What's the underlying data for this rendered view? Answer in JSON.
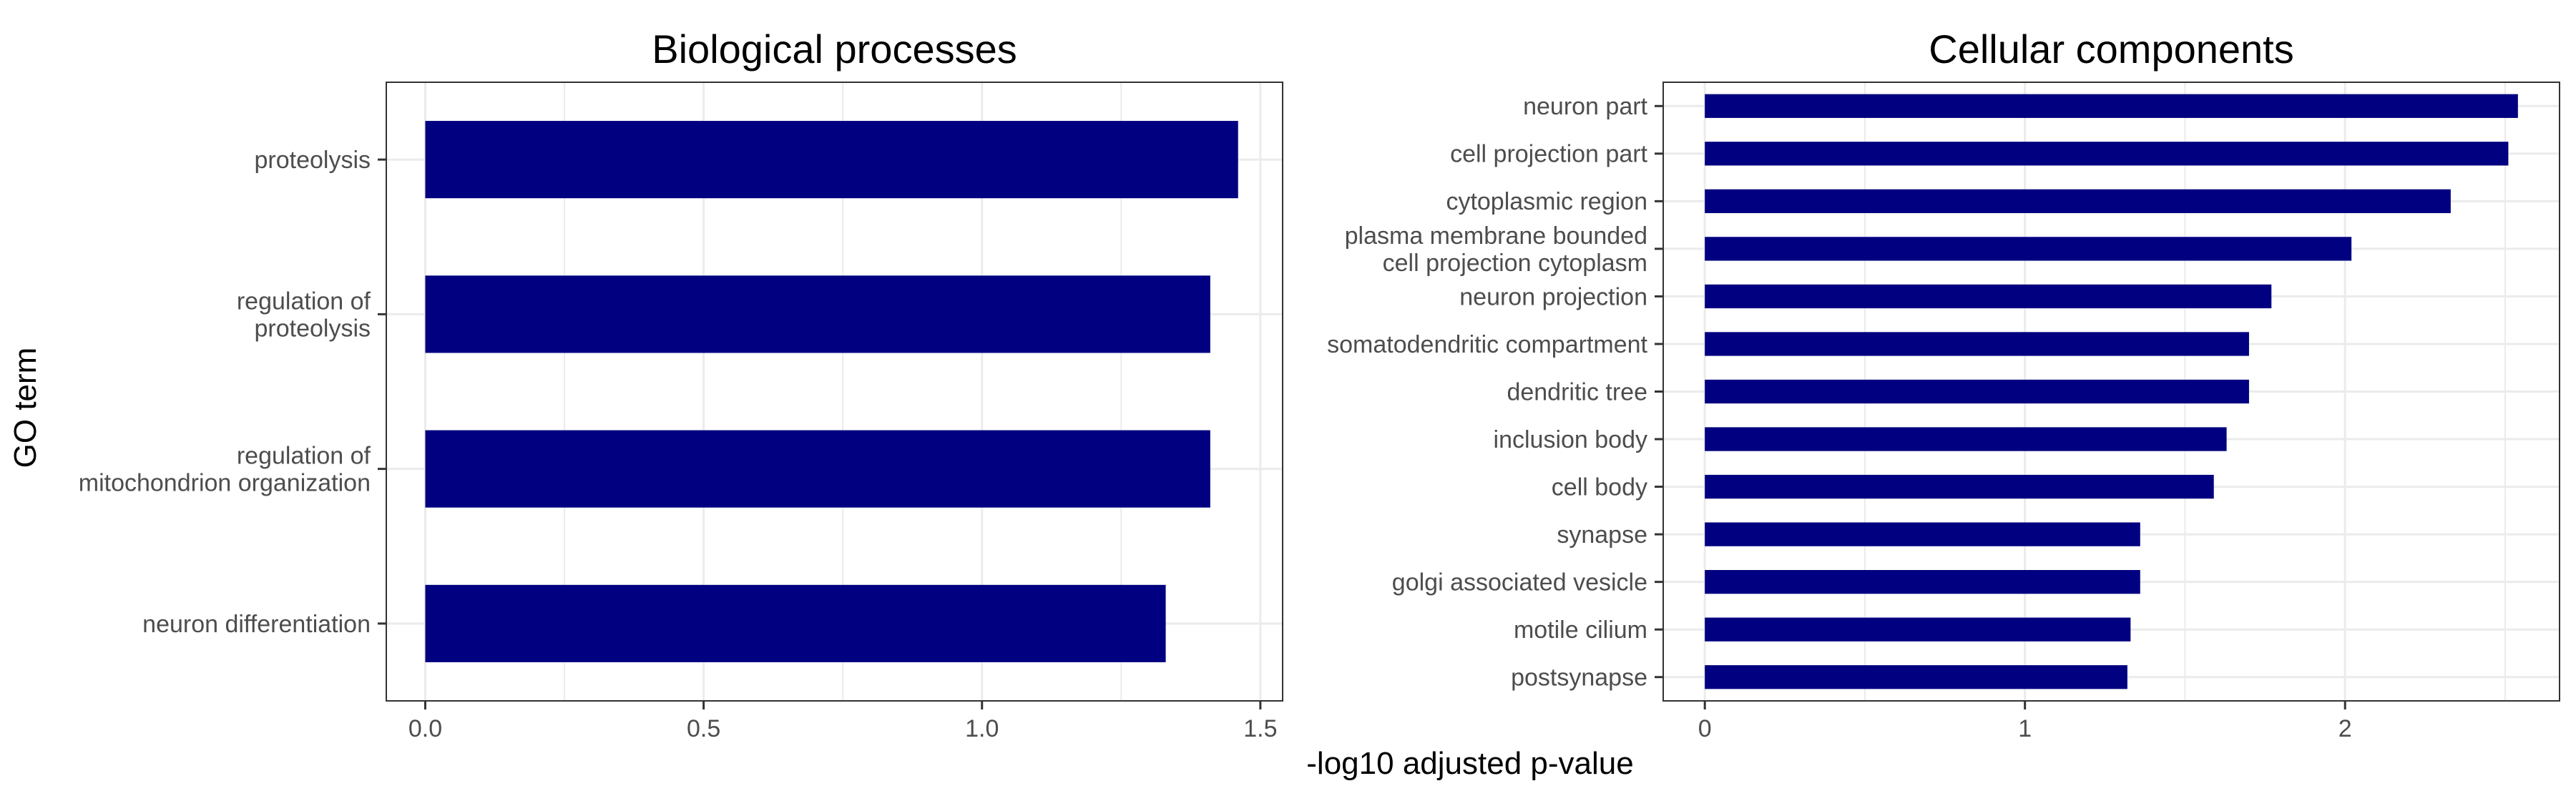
{
  "figure": {
    "ylabel": "GO term",
    "xlabel": "-log10 adjusted p-value",
    "bar_color": "#000080",
    "grid_color": "#ebebeb",
    "panel_border_color": "#333333"
  },
  "chart_data": [
    {
      "type": "bar",
      "orientation": "horizontal",
      "title": "Biological processes",
      "categories": [
        [
          "proteolysis"
        ],
        [
          "regulation of",
          "proteolysis"
        ],
        [
          "regulation of",
          "mitochondrion organization"
        ],
        [
          "neuron differentiation"
        ]
      ],
      "values": [
        1.46,
        1.41,
        1.41,
        1.33
      ],
      "xlim": [
        -0.07,
        1.54
      ],
      "xticks": [
        0.0,
        0.5,
        1.0,
        1.5
      ],
      "xtick_labels": [
        "0.0",
        "0.5",
        "1.0",
        "1.5"
      ],
      "grid": true
    },
    {
      "type": "bar",
      "orientation": "horizontal",
      "title": "Cellular components",
      "categories": [
        [
          "neuron part"
        ],
        [
          "cell projection part"
        ],
        [
          "cytoplasmic region"
        ],
        [
          "plasma membrane bounded",
          "cell projection cytoplasm"
        ],
        [
          "neuron projection"
        ],
        [
          "somatodendritic compartment"
        ],
        [
          "dendritic tree"
        ],
        [
          "inclusion body"
        ],
        [
          "cell body"
        ],
        [
          "synapse"
        ],
        [
          "golgi associated vesicle"
        ],
        [
          "motile cilium"
        ],
        [
          "postsynapse"
        ]
      ],
      "values": [
        2.54,
        2.51,
        2.33,
        2.02,
        1.77,
        1.7,
        1.7,
        1.63,
        1.59,
        1.36,
        1.36,
        1.33,
        1.32
      ],
      "xlim": [
        -0.13,
        2.67
      ],
      "xticks": [
        0,
        1,
        2
      ],
      "xtick_labels": [
        "0",
        "1",
        "2"
      ],
      "grid": true
    }
  ]
}
